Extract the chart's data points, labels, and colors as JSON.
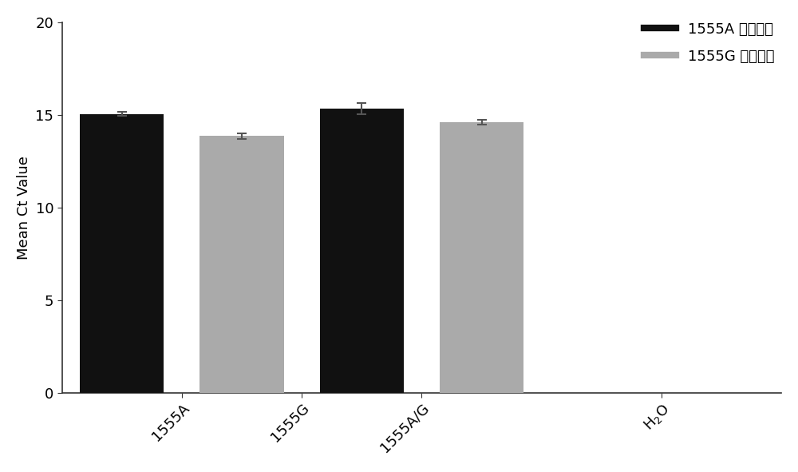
{
  "series": [
    {
      "name": "1555A 检测体系",
      "color": "#111111",
      "bar_positions": [
        0,
        2
      ],
      "values": [
        15.05,
        15.35
      ],
      "errors": [
        0.12,
        0.3
      ]
    },
    {
      "name": "1555G 检测体系",
      "color": "#aaaaaa",
      "bar_positions": [
        1,
        3
      ],
      "values": [
        13.85,
        14.6
      ],
      "errors": [
        0.15,
        0.12
      ]
    }
  ],
  "xtick_positions": [
    0.5,
    1.5,
    2.5,
    4.5
  ],
  "xtick_labels": [
    "1555A",
    "1555G",
    "1555A/G",
    "H$_2$O"
  ],
  "ylabel": "Mean Ct Value",
  "ylim": [
    0,
    20
  ],
  "yticks": [
    0,
    5,
    10,
    15,
    20
  ],
  "bar_width": 0.7,
  "xlim": [
    -0.5,
    5.5
  ],
  "background_color": "#ffffff",
  "legend_fontsize": 13,
  "ylabel_fontsize": 13,
  "tick_fontsize": 13,
  "error_capsize": 4,
  "error_linewidth": 1.5,
  "error_color": "#555555",
  "spine_color": "#333333"
}
